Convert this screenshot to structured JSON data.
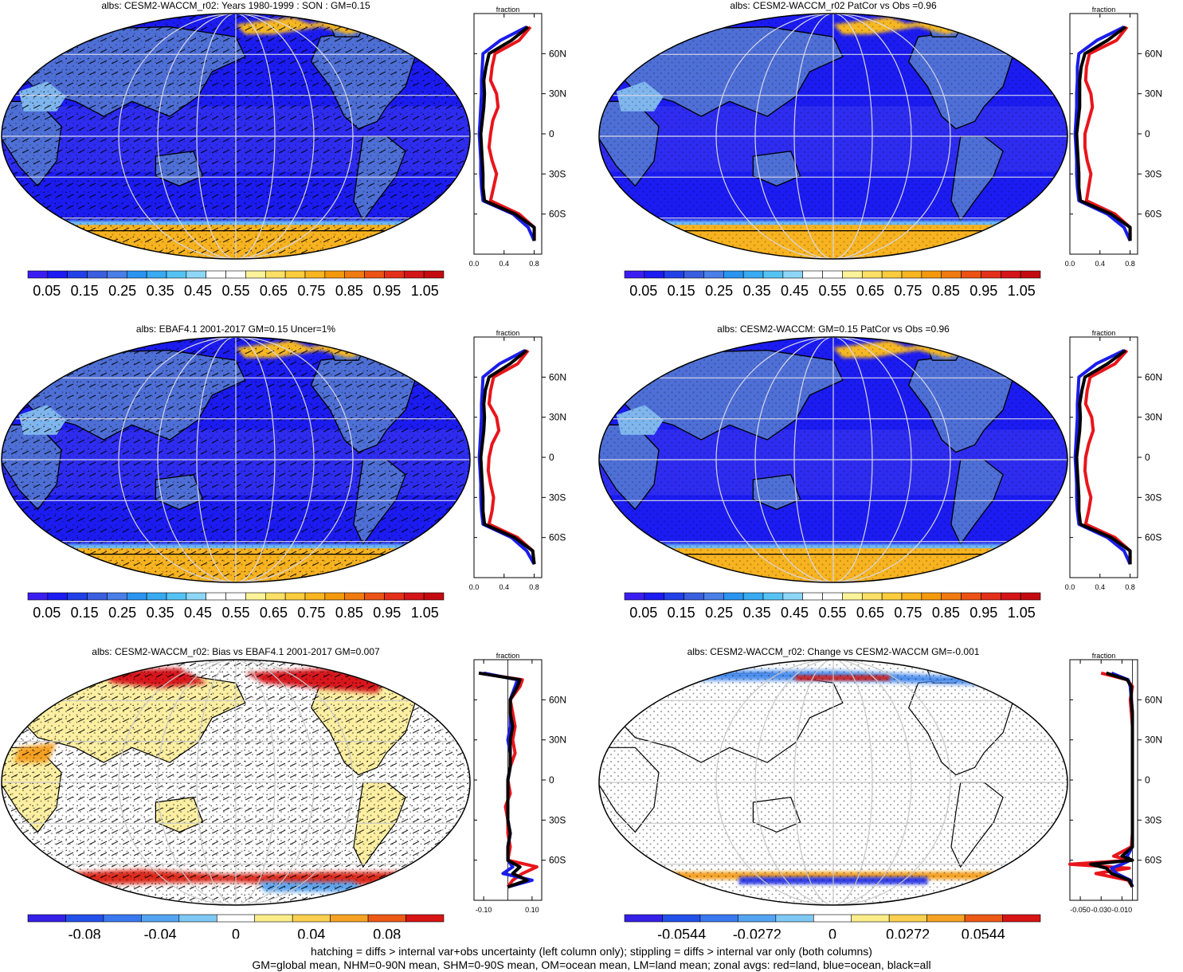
{
  "figure": {
    "variable": "albs",
    "footer_lines": [
      "hatching = diffs > internal var+obs uncertainty (left column only); stippling = diffs > internal var only (both columns)",
      "GM=global mean, NHM=0-90N mean, SHM=0-90S mean, OM=ocean mean, LM=land mean; zonal avgs: red=land, blue=ocean, black=all"
    ]
  },
  "chart_data": [
    {
      "type": "heatmap",
      "title": "albs: CESM2-WACCM_r02: Years 1980-1999 : SON : GM=0.15",
      "map_kind": "albedo",
      "hatching": true,
      "colorbar": {
        "labels": [
          "0.05",
          "0.15",
          "0.25",
          "0.35",
          "0.45",
          "0.55",
          "0.65",
          "0.75",
          "0.85",
          "0.95",
          "1.05"
        ],
        "range": [
          0,
          1.1
        ]
      },
      "zonal": {
        "xlabel": "fraction",
        "xticks": [
          "0.0",
          "0.4",
          "0.8"
        ],
        "xlim": [
          0,
          0.9
        ],
        "yticks": [
          "60N",
          "30N",
          "0",
          "30S",
          "60S"
        ],
        "lat": [
          80,
          70,
          60,
          50,
          40,
          30,
          20,
          10,
          0,
          -10,
          -20,
          -30,
          -40,
          -50,
          -60,
          -70,
          -80
        ],
        "land": [
          0.75,
          0.6,
          0.28,
          0.24,
          0.22,
          0.3,
          0.32,
          0.25,
          0.22,
          0.2,
          0.24,
          0.3,
          0.26,
          0.22,
          0.6,
          0.8,
          0.8
        ],
        "ocean": [
          0.7,
          0.35,
          0.12,
          0.11,
          0.1,
          0.1,
          0.09,
          0.08,
          0.07,
          0.08,
          0.09,
          0.09,
          0.1,
          0.12,
          0.52,
          0.72,
          0.8
        ],
        "all": [
          0.72,
          0.5,
          0.2,
          0.16,
          0.13,
          0.14,
          0.13,
          0.11,
          0.09,
          0.1,
          0.11,
          0.12,
          0.12,
          0.14,
          0.55,
          0.8,
          0.8
        ]
      }
    },
    {
      "type": "heatmap",
      "title": "albs: CESM2-WACCM_r02 PatCor vs Obs =0.96",
      "map_kind": "albedo",
      "hatching": false,
      "colorbar": {
        "labels": [
          "0.05",
          "0.15",
          "0.25",
          "0.35",
          "0.45",
          "0.55",
          "0.65",
          "0.75",
          "0.85",
          "0.95",
          "1.05"
        ],
        "range": [
          0,
          1.1
        ]
      },
      "zonal": {
        "xlabel": "fraction",
        "xticks": [
          "0.0",
          "0.4",
          "0.8"
        ],
        "xlim": [
          0,
          0.9
        ],
        "yticks": [
          "60N",
          "30N",
          "0",
          "30S",
          "60S"
        ],
        "lat": [
          80,
          70,
          60,
          50,
          40,
          30,
          20,
          10,
          0,
          -10,
          -20,
          -30,
          -40,
          -50,
          -60,
          -70,
          -80
        ],
        "land": [
          0.76,
          0.62,
          0.26,
          0.22,
          0.21,
          0.28,
          0.3,
          0.25,
          0.2,
          0.2,
          0.23,
          0.28,
          0.25,
          0.22,
          0.6,
          0.8,
          0.8
        ],
        "ocean": [
          0.72,
          0.36,
          0.12,
          0.1,
          0.1,
          0.09,
          0.09,
          0.08,
          0.07,
          0.08,
          0.09,
          0.09,
          0.1,
          0.12,
          0.5,
          0.72,
          0.8
        ],
        "all": [
          0.74,
          0.5,
          0.2,
          0.15,
          0.13,
          0.13,
          0.13,
          0.11,
          0.09,
          0.1,
          0.11,
          0.12,
          0.12,
          0.14,
          0.55,
          0.8,
          0.8
        ]
      }
    },
    {
      "type": "heatmap",
      "title": "albs: EBAF4.1 2001-2017 GM=0.15 Uncer=1%",
      "map_kind": "albedo",
      "hatching": true,
      "colorbar": {
        "labels": [
          "0.05",
          "0.15",
          "0.25",
          "0.35",
          "0.45",
          "0.55",
          "0.65",
          "0.75",
          "0.85",
          "0.95",
          "1.05"
        ],
        "range": [
          0,
          1.1
        ]
      },
      "zonal": {
        "xlabel": "fraction",
        "xticks": [
          "0.0",
          "0.4",
          "0.8"
        ],
        "xlim": [
          0,
          0.9
        ],
        "yticks": [
          "60N",
          "30N",
          "0",
          "30S",
          "60S"
        ],
        "lat": [
          80,
          70,
          60,
          50,
          40,
          30,
          20,
          10,
          0,
          -10,
          -20,
          -30,
          -40,
          -50,
          -60,
          -70,
          -80
        ],
        "land": [
          0.72,
          0.58,
          0.26,
          0.22,
          0.2,
          0.3,
          0.33,
          0.24,
          0.2,
          0.19,
          0.22,
          0.26,
          0.24,
          0.2,
          0.58,
          0.78,
          0.8
        ],
        "ocean": [
          0.68,
          0.34,
          0.12,
          0.11,
          0.1,
          0.1,
          0.09,
          0.08,
          0.07,
          0.08,
          0.09,
          0.09,
          0.1,
          0.12,
          0.5,
          0.7,
          0.8
        ],
        "all": [
          0.7,
          0.48,
          0.2,
          0.15,
          0.13,
          0.14,
          0.13,
          0.11,
          0.09,
          0.1,
          0.11,
          0.12,
          0.12,
          0.14,
          0.54,
          0.78,
          0.8
        ]
      }
    },
    {
      "type": "heatmap",
      "title": "albs: CESM2-WACCM: GM=0.15 PatCor vs Obs =0.96",
      "map_kind": "albedo",
      "hatching": false,
      "colorbar": {
        "labels": [
          "0.05",
          "0.15",
          "0.25",
          "0.35",
          "0.45",
          "0.55",
          "0.65",
          "0.75",
          "0.85",
          "0.95",
          "1.05"
        ],
        "range": [
          0,
          1.1
        ]
      },
      "zonal": {
        "xlabel": "fraction",
        "xticks": [
          "0.0",
          "0.4",
          "0.8"
        ],
        "xlim": [
          0,
          0.9
        ],
        "yticks": [
          "60N",
          "30N",
          "0",
          "30S",
          "60S"
        ],
        "lat": [
          80,
          70,
          60,
          50,
          40,
          30,
          20,
          10,
          0,
          -10,
          -20,
          -30,
          -40,
          -50,
          -60,
          -70,
          -80
        ],
        "land": [
          0.76,
          0.6,
          0.27,
          0.23,
          0.21,
          0.29,
          0.31,
          0.25,
          0.21,
          0.2,
          0.23,
          0.28,
          0.25,
          0.21,
          0.6,
          0.8,
          0.8
        ],
        "ocean": [
          0.72,
          0.35,
          0.12,
          0.11,
          0.1,
          0.1,
          0.09,
          0.08,
          0.07,
          0.08,
          0.09,
          0.09,
          0.1,
          0.12,
          0.5,
          0.72,
          0.8
        ],
        "all": [
          0.74,
          0.5,
          0.2,
          0.16,
          0.13,
          0.14,
          0.13,
          0.11,
          0.09,
          0.1,
          0.11,
          0.12,
          0.12,
          0.14,
          0.55,
          0.8,
          0.8
        ]
      }
    },
    {
      "type": "heatmap",
      "title": "albs: CESM2-WACCM_r02: Bias vs EBAF4.1 2001-2017  GM=0.007",
      "map_kind": "diff",
      "hatching": true,
      "colorbar": {
        "labels": [
          "-0.08",
          "-0.04",
          "0",
          "0.04",
          "0.08"
        ],
        "range": [
          -0.11,
          0.11
        ]
      },
      "zonal": {
        "xlabel": "fraction",
        "xticks": [
          "-0.10",
          "0.10"
        ],
        "xlim": [
          -0.14,
          0.14
        ],
        "yticks": [
          "60N",
          "30N",
          "0",
          "30S",
          "60S"
        ],
        "lat": [
          80,
          75,
          70,
          60,
          50,
          40,
          30,
          20,
          10,
          0,
          -10,
          -20,
          -30,
          -40,
          -50,
          -60,
          -65,
          -70,
          -75,
          -80
        ],
        "land": [
          -0.12,
          0.06,
          0.05,
          0.01,
          0.02,
          0.03,
          0.02,
          0.03,
          0.01,
          0.0,
          0.01,
          -0.01,
          0.0,
          0.0,
          0.01,
          0.0,
          0.12,
          0.06,
          0.02,
          0.0
        ],
        "ocean": [
          -0.1,
          0.04,
          0.03,
          0.01,
          0.01,
          0.01,
          0.0,
          0.01,
          0.01,
          0.0,
          0.0,
          0.0,
          0.0,
          0.01,
          0.0,
          0.0,
          0.02,
          -0.02,
          0.1,
          0.0
        ],
        "all": [
          -0.12,
          0.05,
          0.04,
          0.01,
          0.01,
          0.02,
          0.01,
          0.01,
          0.01,
          0.0,
          0.0,
          0.0,
          0.0,
          0.01,
          0.0,
          0.0,
          0.05,
          0.02,
          0.08,
          0.0
        ]
      }
    },
    {
      "type": "heatmap",
      "title": "albs: CESM2-WACCM_r02: Change vs CESM2-WACCM GM=-0.001",
      "map_kind": "change",
      "hatching": false,
      "colorbar": {
        "labels": [
          "-0.0544",
          "-0.0272",
          "0",
          "0.0272",
          "0.0544"
        ],
        "range": [
          -0.075,
          0.075
        ]
      },
      "zonal": {
        "xlabel": "fraction",
        "xticks": [
          "-0.050",
          "-0.030",
          "-0.010"
        ],
        "xlim": [
          -0.06,
          0.005
        ],
        "yticks": [
          "60N",
          "30N",
          "0",
          "30S",
          "60S"
        ],
        "lat": [
          80,
          75,
          70,
          60,
          50,
          40,
          30,
          20,
          10,
          0,
          -10,
          -20,
          -30,
          -40,
          -50,
          -57,
          -60,
          -63,
          -66,
          -70,
          -75,
          -80
        ],
        "land": [
          -0.03,
          -0.005,
          0.0,
          -0.002,
          -0.001,
          0.0,
          0.0,
          0.0,
          0.0,
          0.0,
          0.0,
          0.0,
          0.0,
          0.0,
          -0.001,
          -0.018,
          -0.002,
          -0.06,
          -0.003,
          -0.035,
          -0.004,
          0.0
        ],
        "ocean": [
          -0.02,
          -0.004,
          -0.002,
          -0.001,
          0.0,
          0.0,
          0.0,
          0.0,
          0.0,
          0.0,
          0.0,
          0.0,
          0.0,
          0.0,
          0.0,
          -0.005,
          -0.002,
          -0.01,
          -0.02,
          -0.015,
          -0.002,
          0.0
        ],
        "all": [
          -0.025,
          -0.005,
          -0.001,
          -0.001,
          0.0,
          0.0,
          0.0,
          0.0,
          0.0,
          0.0,
          0.0,
          0.0,
          0.0,
          0.0,
          0.0,
          -0.01,
          0.0,
          -0.04,
          -0.025,
          -0.02,
          -0.003,
          0.0
        ]
      }
    }
  ]
}
